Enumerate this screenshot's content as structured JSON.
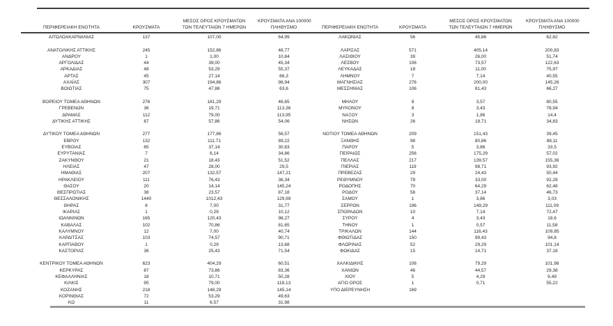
{
  "table": {
    "headers": [
      {
        "lines": [
          "ΠΕΡΙΦΕΡΕΙΑΚΗ ΕΝΟΤΗΤΑ"
        ]
      },
      {
        "lines": [
          "ΚΡΟΥΣΜΑΤΑ"
        ]
      },
      {
        "lines": [
          "ΜΕΣΟΣ ΟΡΟΣ ΚΡΟΥΣΜΑΤΩΝ",
          "ΤΩΝ ΤΕΛΕΥΤΑΙΩΝ 7 ΗΜΕΡΩΝ"
        ]
      },
      {
        "lines": [
          "ΚΡΟΥΣΜΑΤΑ ΑΝΑ 100000",
          "ΠΛΗΘΥΣΜΟ"
        ]
      }
    ],
    "left_groups": [
      [
        [
          "ΑΙΤΩΛΟΑΚΑΡΝΑΝΙΑΣ",
          "137",
          "107,00",
          "64,99"
        ]
      ],
      [
        [
          "ΑΝΑΤΟΛΙΚΗΣ ΑΤΤΙΚΗΣ",
          "245",
          "152,86",
          "48,77"
        ],
        [
          "ΑΝΔΡΟΥ",
          "1",
          "1,00",
          "10,84"
        ],
        [
          "ΑΡΓΟΛΙΔΑΣ",
          "44",
          "39,00",
          "45,34"
        ],
        [
          "ΑΡΚΑΔΙΑΣ",
          "48",
          "53,29",
          "55,37"
        ],
        [
          "ΑΡΤΑΣ",
          "45",
          "27,14",
          "66,3"
        ],
        [
          "ΑΧΑΪΑΣ",
          "307",
          "194,86",
          "98,94"
        ],
        [
          "ΒΟΙΩΤΙΑΣ",
          "75",
          "47,86",
          "63,6"
        ]
      ],
      [
        [
          "ΒΟΡΕΙΟΥ ΤΟΜΕΑ ΑΘΗΝΩΝ",
          "276",
          "181,29",
          "46,65"
        ],
        [
          "ΓΡΕΒΕΝΩΝ",
          "36",
          "19,71",
          "113,36"
        ],
        [
          "ΔΡΑΜΑΣ",
          "112",
          "79,00",
          "113,95"
        ],
        [
          "ΔΥΤΙΚΗΣ ΑΤΤΙΚΗΣ",
          "87",
          "57,86",
          "54,06"
        ]
      ],
      [
        [
          "ΔΥΤΙΚΟΥ ΤΟΜΕΑ ΑΘΗΝΩΝ",
          "277",
          "177,86",
          "56,57"
        ],
        [
          "ΕΒΡΟΥ",
          "132",
          "111,71",
          "89,22"
        ],
        [
          "ΕΥΒΟΙΑΣ",
          "65",
          "37,14",
          "30,83"
        ],
        [
          "ΕΥΡΥΤΑΝΙΑΣ",
          "7",
          "6,14",
          "34,86"
        ],
        [
          "ΖΑΚΥΝΘΟΥ",
          "21",
          "18,43",
          "51,52"
        ],
        [
          "ΗΛΕΙΑΣ",
          "47",
          "28,00",
          "29,5"
        ],
        [
          "ΗΜΑΘΙΑΣ",
          "207",
          "132,57",
          "147,21"
        ],
        [
          "ΗΡΑΚΛΕΙΟΥ",
          "111",
          "76,43",
          "36,34"
        ],
        [
          "ΘΑΣΟΥ",
          "20",
          "14,14",
          "145,24"
        ],
        [
          "ΘΕΣΠΡΩΤΙΑΣ",
          "38",
          "23,57",
          "87,18"
        ],
        [
          "ΘΕΣΣΑΛΟΝΙΚΗΣ",
          "1440",
          "1012,43",
          "129,69"
        ],
        [
          "ΘΗΡΑΣ",
          "6",
          "7,00",
          "31,77"
        ],
        [
          "ΙΚΑΡΙΑΣ",
          "1",
          "0,29",
          "10,12"
        ],
        [
          "ΙΩΑΝΝΙΝΩΝ",
          "165",
          "120,43",
          "98,27"
        ],
        [
          "ΚΑΒΑΛΑΣ",
          "102",
          "70,86",
          "81,65"
        ],
        [
          "ΚΑΛΥΜΝΟΥ",
          "12",
          "7,00",
          "40,74"
        ],
        [
          "ΚΑΡΔΙΤΣΑΣ",
          "103",
          "74,57",
          "90,71"
        ],
        [
          "ΚΑΡΠΑΘΟΥ",
          "1",
          "0,29",
          "13,68"
        ],
        [
          "ΚΑΣΤΟΡΙΑΣ",
          "36",
          "25,43",
          "71,54"
        ]
      ],
      [
        [
          "ΚΕΝΤΡΙΚΟΥ ΤΟΜΕΑ ΑΘΗΝΩΝ",
          "623",
          "404,29",
          "60,51"
        ],
        [
          "ΚΕΡΚΥΡΑΣ",
          "87",
          "73,86",
          "83,36"
        ],
        [
          "ΚΕΦΑΛΛΗΝΙΑΣ",
          "18",
          "10,71",
          "50,28"
        ],
        [
          "ΚΙΛΚΙΣ",
          "95",
          "79,00",
          "118,13"
        ],
        [
          "ΚΟΖΑΝΗΣ",
          "218",
          "148,29",
          "145,14"
        ],
        [
          "ΚΟΡΙΝΘΙΑΣ",
          "72",
          "53,29",
          "49,63"
        ],
        [
          "ΚΩ",
          "11",
          "6,57",
          "31,98"
        ]
      ]
    ],
    "right_groups": [
      [
        [
          "ΛΑΚΩΝΙΑΣ",
          "56",
          "45,86",
          "62,82"
        ]
      ],
      [
        [
          "ΛΑΡΙΣΑΣ",
          "571",
          "405,14",
          "200,83"
        ],
        [
          "ΛΑΣΙΘΙΟΥ",
          "39",
          "26,00",
          "51,74"
        ],
        [
          "ΛΕΣΒΟΥ",
          "106",
          "73,57",
          "122,63"
        ],
        [
          "ΛΕΥΚΑΔΑΣ",
          "18",
          "11,00",
          "75,97"
        ],
        [
          "ΛΗΜΝΟΥ",
          "7",
          "7,14",
          "40,55"
        ],
        [
          "ΜΑΓΝΗΣΙΑΣ",
          "276",
          "200,00",
          "145,26"
        ],
        [
          "ΜΕΣΣΗΝΙΑΣ",
          "106",
          "81,43",
          "66,27"
        ]
      ],
      [
        [
          "ΜΗΛΟΥ",
          "8",
          "3,57",
          "80,55"
        ],
        [
          "ΜΥΚΟΝΟΥ",
          "8",
          "3,43",
          "78,94"
        ],
        [
          "ΝΑΞΟΥ",
          "3",
          "1,86",
          "14,4"
        ],
        [
          "ΝΗΣΩΝ",
          "26",
          "18,71",
          "34,83"
        ]
      ],
      [
        [
          "ΝΟΤΙΟΥ ΤΟΜΕΑ ΑΘΗΝΩΝ",
          "209",
          "151,43",
          "39,45"
        ],
        [
          "ΞΑΝΘΗΣ",
          "98",
          "80,86",
          "88,11"
        ],
        [
          "ΠΑΡΟΥ",
          "5",
          "3,86",
          "33,5"
        ],
        [
          "ΠΕΙΡΑΙΩΣ",
          "256",
          "175,29",
          "57,02"
        ],
        [
          "ΠΕΛΛΑΣ",
          "217",
          "139,57",
          "155,36"
        ],
        [
          "ΠΙΕΡΙΑΣ",
          "119",
          "98,71",
          "93,92"
        ],
        [
          "ΠΡΕΒΕΖΑΣ",
          "29",
          "24,43",
          "50,44"
        ],
        [
          "ΡΕΘΥΜΝΟΥ",
          "79",
          "33,00",
          "92,28"
        ],
        [
          "ΡΟΔΟΠΗΣ",
          "70",
          "64,29",
          "62,48"
        ],
        [
          "ΡΟΔΟΥ",
          "56",
          "37,14",
          "46,73"
        ],
        [
          "ΣΑΜΟΥ",
          "1",
          "3,86",
          "3,03"
        ],
        [
          "ΣΕΡΡΩΝ",
          "196",
          "149,29",
          "111,09"
        ],
        [
          "ΣΠΟΡΑΔΩΝ",
          "10",
          "7,14",
          "72,47"
        ],
        [
          "ΣΥΡΟΥ",
          "4",
          "3,43",
          "18,6"
        ],
        [
          "ΤΗΝΟΥ",
          "1",
          "0,57",
          "11,58"
        ],
        [
          "ΤΡΙΚΑΛΩΝ",
          "144",
          "116,43",
          "109,85"
        ],
        [
          "ΦΘΙΩΤΙΔΑΣ",
          "150",
          "99,43",
          "94,8"
        ],
        [
          "ΦΛΩΡΙΝΑΣ",
          "52",
          "29,29",
          "101,14"
        ],
        [
          "ΦΩΚΙΔΑΣ",
          "15",
          "14,71",
          "37,18"
        ]
      ],
      [
        [
          "ΧΑΛΚΙΔΙΚΗΣ",
          "108",
          "79,29",
          "101,98"
        ],
        [
          "ΧΑΝΙΩΝ",
          "46",
          "44,57",
          "29,38"
        ],
        [
          "ΧΙΟΥ",
          "5",
          "4,29",
          "9,49"
        ],
        [
          "ΑΓΙΟ ΟΡΟΣ",
          "1",
          "0,71",
          "55,22"
        ],
        [
          "ΥΠΟ ΔΙΕΡΕΥΝΗΣΗ",
          "169",
          "",
          ""
        ]
      ]
    ]
  }
}
